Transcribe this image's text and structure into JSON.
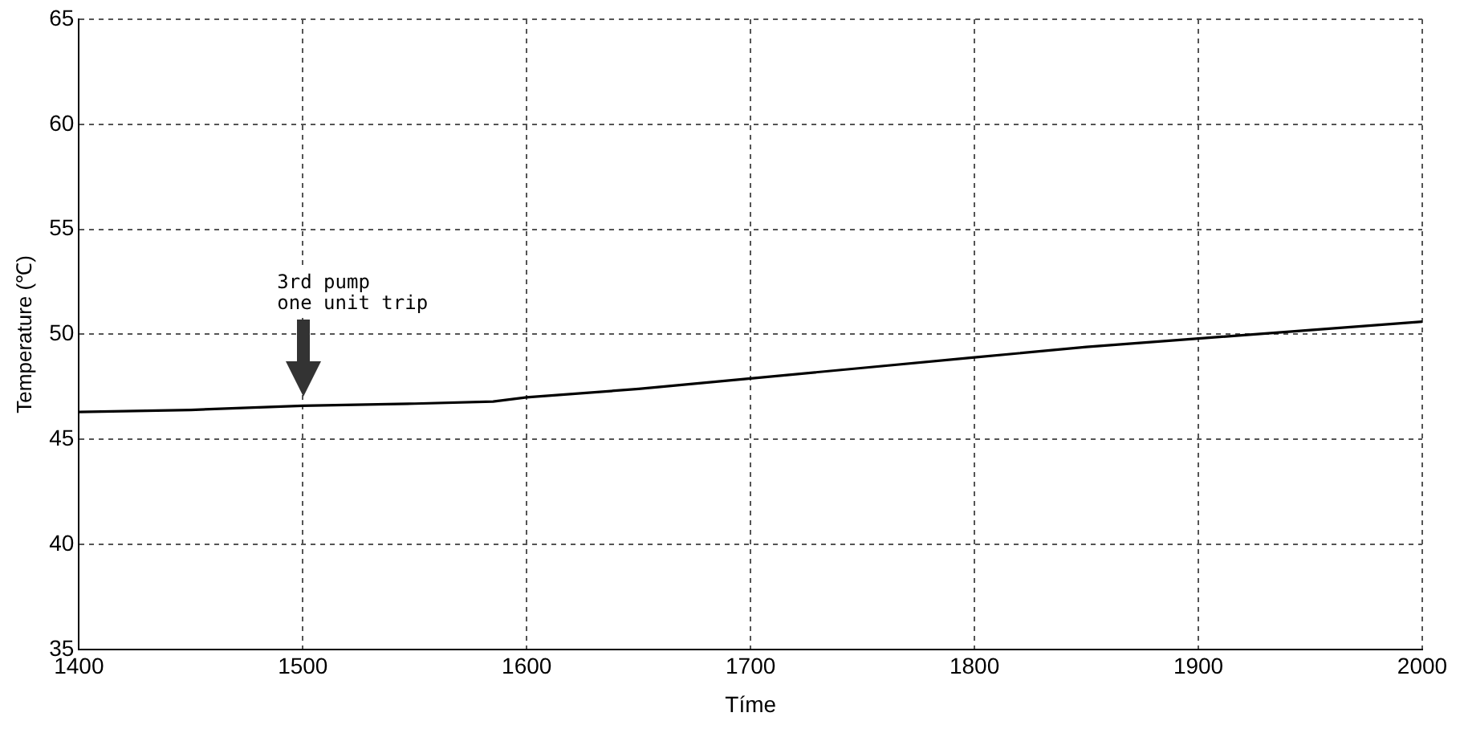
{
  "chart_data": {
    "type": "line",
    "xlabel": "Tíme",
    "ylabel": "Temperature (℃)",
    "x": [
      1400,
      1450,
      1500,
      1550,
      1585,
      1600,
      1650,
      1700,
      1750,
      1800,
      1850,
      1900,
      1950,
      2000
    ],
    "series": [
      {
        "color": "#000000",
        "values": [
          46.3,
          46.4,
          46.6,
          46.7,
          46.8,
          47.0,
          47.4,
          47.9,
          48.4,
          48.9,
          49.4,
          49.8,
          50.2,
          50.6
        ]
      }
    ],
    "xlim": [
      1400,
      2000
    ],
    "xticks": [
      1400,
      1500,
      1600,
      1700,
      1800,
      1900,
      2000
    ],
    "ylim": [
      35,
      65
    ],
    "yticks": [
      35,
      40,
      45,
      50,
      55,
      60,
      65
    ],
    "grid": true,
    "line_style": "solid",
    "marker": "none",
    "legend": false,
    "annotations": [
      "3rd pump\none unit trip"
    ]
  }
}
